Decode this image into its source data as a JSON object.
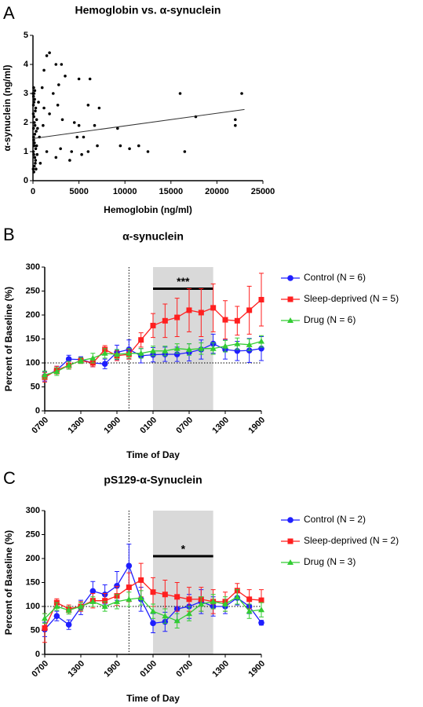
{
  "chart_data": [
    {
      "type": "scatter",
      "label": "A",
      "title": "Hemoglobin vs. α-synuclein",
      "xlabel": "Hemoglobin (ng/ml)",
      "ylabel": "α-synuclein (ng/ml)",
      "xlim": [
        0,
        25000
      ],
      "xticks": [
        0,
        5000,
        10000,
        15000,
        20000,
        25000
      ],
      "ylim": [
        0,
        5
      ],
      "yticks": [
        0,
        1,
        2,
        3,
        4,
        5
      ],
      "color": "#000000",
      "x": [
        1500,
        1800,
        1200,
        2500,
        3100,
        3500,
        5000,
        6000,
        6200,
        1000,
        2200,
        2700,
        3200,
        4500,
        5000,
        4800,
        5500,
        6700,
        7200,
        9200,
        9500,
        10500,
        11500,
        12500,
        16000,
        16500,
        17700,
        22000,
        22000,
        22700,
        1500,
        2500,
        3000,
        4000,
        5300,
        6000,
        800,
        1200,
        1800,
        2800,
        4200,
        7000,
        700,
        1100,
        600,
        100,
        150,
        200,
        50,
        120,
        80,
        200,
        60,
        150,
        100,
        250,
        50,
        180,
        120,
        80,
        300,
        350,
        400,
        250,
        30,
        90,
        160,
        220,
        40,
        300,
        110,
        70,
        280,
        400,
        10,
        200,
        330,
        500,
        450,
        60
      ],
      "y": [
        4.3,
        4.4,
        3.8,
        4.0,
        4.0,
        3.6,
        3.5,
        2.6,
        3.5,
        3.2,
        3.0,
        2.6,
        2.1,
        2.0,
        1.9,
        1.5,
        1.5,
        1.9,
        2.5,
        1.8,
        1.2,
        1.1,
        1.2,
        1.0,
        3.0,
        1.0,
        2.2,
        2.1,
        1.9,
        3.0,
        1.0,
        0.8,
        1.1,
        0.7,
        0.9,
        1.0,
        0.6,
        2.5,
        2.3,
        3.3,
        1.0,
        1.2,
        1.5,
        1.9,
        2.7,
        0.3,
        0.5,
        0.8,
        1.0,
        1.2,
        1.4,
        1.6,
        1.8,
        2.0,
        2.2,
        2.4,
        2.6,
        2.8,
        3.0,
        3.2,
        1.1,
        1.7,
        2.1,
        0.6,
        0.4,
        0.9,
        1.3,
        1.9,
        2.3,
        2.5,
        2.7,
        1.5,
        0.7,
        1.2,
        3.0,
        3.1,
        0.4,
        1.8,
        0.9,
        2.9
      ],
      "trend_x": [
        0,
        23000
      ],
      "trend_y": [
        1.45,
        2.45
      ]
    },
    {
      "type": "line",
      "label": "B",
      "title": "α-synuclein",
      "xlabel": "Time of Day",
      "ylabel": "Percent of Baseline (%)",
      "x": [
        0,
        2,
        4,
        6,
        8,
        10,
        12,
        14,
        16,
        18,
        20,
        22,
        24,
        26,
        28,
        30,
        32,
        34,
        36
      ],
      "xlim": [
        0,
        36
      ],
      "xticks": [
        {
          "value": 0,
          "label": "0700"
        },
        {
          "value": 6,
          "label": "1300"
        },
        {
          "value": 12,
          "label": "1900"
        },
        {
          "value": 18,
          "label": "0100"
        },
        {
          "value": 24,
          "label": "0700"
        },
        {
          "value": 30,
          "label": "1300"
        },
        {
          "value": 36,
          "label": "1900"
        }
      ],
      "ylim": [
        0,
        300
      ],
      "yticks": [
        0,
        50,
        100,
        150,
        200,
        250,
        300
      ],
      "vline": 14,
      "hline": 100,
      "shade": [
        18,
        28
      ],
      "significance": {
        "x": [
          18,
          28
        ],
        "y": 255,
        "label": "***"
      },
      "series": [
        {
          "name": "Control (N = 6)",
          "color": "#1f1fff",
          "marker": "circle",
          "values": [
            72,
            85,
            108,
            107,
            100,
            98,
            122,
            128,
            115,
            117,
            118,
            118,
            122,
            128,
            140,
            128,
            125,
            126,
            130
          ],
          "errors": [
            10,
            8,
            8,
            6,
            8,
            10,
            15,
            20,
            15,
            15,
            15,
            15,
            18,
            20,
            20,
            20,
            20,
            25,
            25
          ]
        },
        {
          "name": "Sleep-deprived (N = 5)",
          "color": "#ff1f1f",
          "marker": "square",
          "values": [
            70,
            85,
            95,
            105,
            100,
            128,
            115,
            118,
            148,
            178,
            188,
            195,
            210,
            205,
            215,
            190,
            188,
            210,
            232
          ],
          "errors": [
            10,
            8,
            8,
            6,
            8,
            8,
            10,
            10,
            15,
            25,
            35,
            40,
            45,
            50,
            50,
            40,
            30,
            50,
            55
          ]
        },
        {
          "name": "Drug (N = 6)",
          "color": "#33cc33",
          "marker": "triangle",
          "values": [
            75,
            82,
            95,
            105,
            110,
            120,
            118,
            120,
            120,
            125,
            125,
            130,
            128,
            130,
            130,
            135,
            140,
            138,
            145
          ],
          "errors": [
            8,
            8,
            8,
            6,
            10,
            10,
            10,
            10,
            10,
            10,
            10,
            10,
            12,
            12,
            12,
            12,
            12,
            12,
            12
          ]
        }
      ]
    },
    {
      "type": "line",
      "label": "C",
      "title": "pS129-α-Synuclein",
      "xlabel": "Time of Day",
      "ylabel": "Percent of Baseline (%)",
      "x": [
        0,
        2,
        4,
        6,
        8,
        10,
        12,
        14,
        16,
        18,
        20,
        22,
        24,
        26,
        28,
        30,
        32,
        34,
        36
      ],
      "xlim": [
        0,
        36
      ],
      "xticks": [
        {
          "value": 0,
          "label": "0700"
        },
        {
          "value": 6,
          "label": "1300"
        },
        {
          "value": 12,
          "label": "1900"
        },
        {
          "value": 18,
          "label": "0100"
        },
        {
          "value": 24,
          "label": "0700"
        },
        {
          "value": 30,
          "label": "1300"
        },
        {
          "value": 36,
          "label": "1900"
        }
      ],
      "ylim": [
        0,
        300
      ],
      "yticks": [
        0,
        50,
        100,
        150,
        200,
        250,
        300
      ],
      "vline": 14,
      "hline": 100,
      "shade": [
        18,
        28
      ],
      "significance": {
        "x": [
          18,
          28
        ],
        "y": 205,
        "label": "*"
      },
      "series": [
        {
          "name": "Control (N = 2)",
          "color": "#1f1fff",
          "marker": "circle",
          "values": [
            52,
            80,
            62,
            98,
            132,
            125,
            143,
            185,
            115,
            65,
            68,
            95,
            100,
            110,
            100,
            100,
            118,
            100,
            66
          ],
          "errors": [
            15,
            10,
            10,
            15,
            20,
            20,
            30,
            45,
            25,
            20,
            20,
            25,
            25,
            25,
            20,
            15,
            15,
            15,
            5
          ]
        },
        {
          "name": "Sleep-deprived (N = 2)",
          "color": "#ff1f1f",
          "marker": "square",
          "values": [
            55,
            108,
            95,
            100,
            112,
            112,
            122,
            140,
            155,
            130,
            125,
            120,
            115,
            115,
            110,
            110,
            133,
            115,
            113
          ],
          "errors": [
            30,
            8,
            8,
            10,
            15,
            15,
            20,
            30,
            35,
            30,
            30,
            30,
            25,
            25,
            25,
            20,
            15,
            20,
            22
          ]
        },
        {
          "name": "Drug (N = 3)",
          "color": "#33cc33",
          "marker": "triangle",
          "values": [
            75,
            100,
            92,
            100,
            110,
            100,
            110,
            115,
            118,
            90,
            80,
            70,
            85,
            105,
            110,
            105,
            120,
            90,
            93
          ],
          "errors": [
            10,
            8,
            8,
            8,
            10,
            10,
            15,
            15,
            15,
            15,
            15,
            15,
            15,
            15,
            15,
            15,
            15,
            15,
            15
          ]
        }
      ]
    }
  ]
}
